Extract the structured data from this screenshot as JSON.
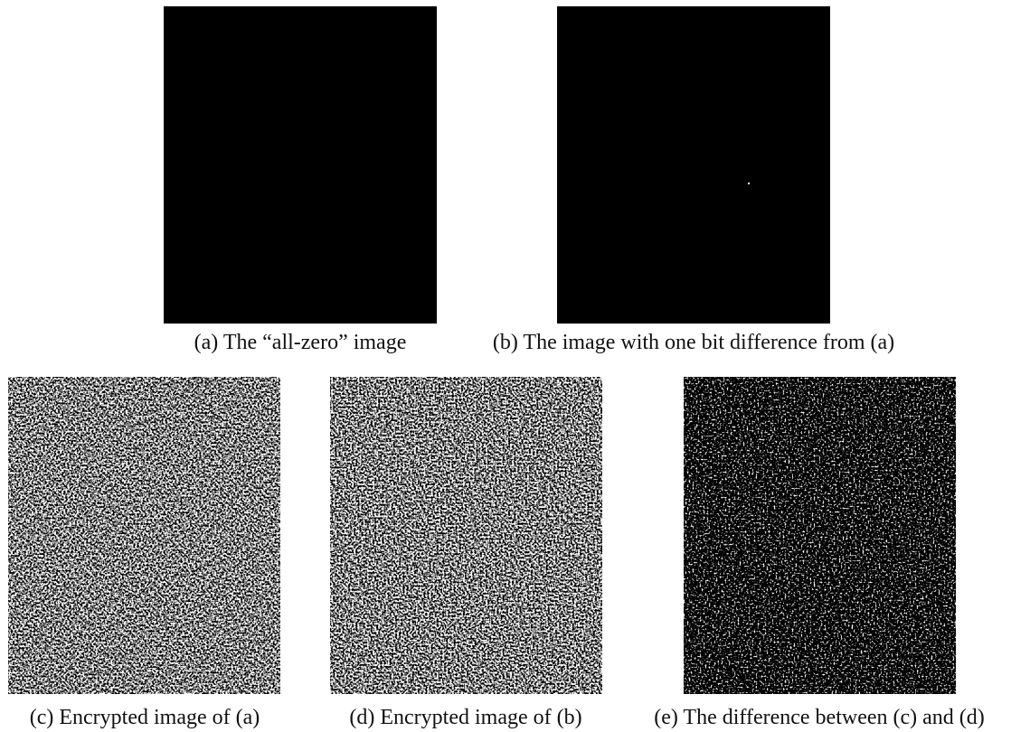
{
  "figure": {
    "panels": [
      {
        "caption": "(a) The “all-zero” image"
      },
      {
        "caption": "(b) The image with one bit difference from (a)"
      },
      {
        "caption": "(c) Encrypted image of (a)"
      },
      {
        "caption": "(d) Encrypted image of (b)"
      },
      {
        "caption": "(e) The difference between (c) and (d)"
      }
    ]
  }
}
